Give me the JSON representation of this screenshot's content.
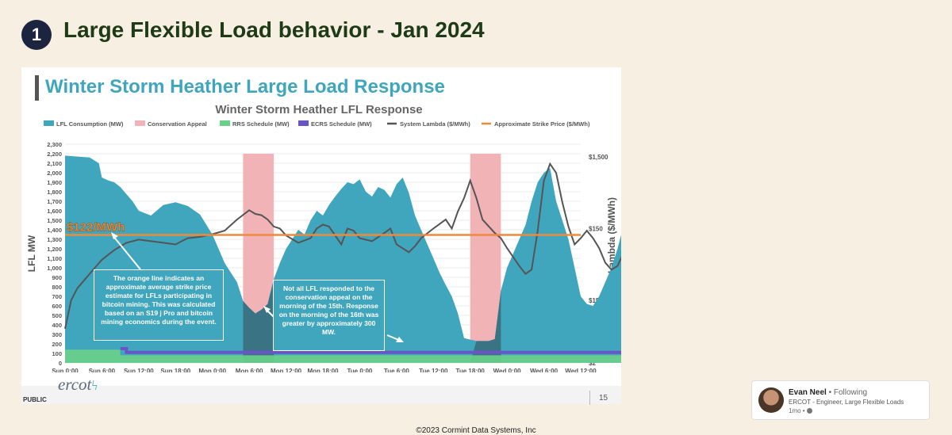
{
  "header": {
    "badge": "1",
    "title": "Large Flexible Load behavior - Jan 2024"
  },
  "slide": {
    "title": "Winter Storm Heather Large Load Response",
    "public_label": "PUBLIC",
    "logo_text": "ercot",
    "page_number": "15"
  },
  "callouts": {
    "left": "The orange line indicates an approximate average strike price estimate for LFLs participating in bitcoin mining. This was calculated based on an S19 j Pro and bitcoin mining economics during the event.",
    "right": "Not all LFL responded to the conservation appeal on the morning of the 15th. Response on the morning of the 16th was greater by approximately 300 MW."
  },
  "profile": {
    "name": "Evan Neel",
    "status": "• Following",
    "role": "ERCOT - Engineer, Large Flexible Loads",
    "time": "1mo •"
  },
  "copyright": "©2023 Cormint Data Systems, Inc",
  "colors": {
    "lfl": "#3fa6bd",
    "conservation": "#f2b3b6",
    "rrs": "#6ad18a",
    "ecrs": "#6a55c8",
    "lambda": "#555555",
    "strike": "#ee8a3c"
  },
  "chart_data": {
    "type": "area",
    "title": "Winter Storm Heather LFL Response",
    "ylabel": "LFL MW",
    "y2label": "System Lambda ($/MWh)",
    "ylim": [
      0,
      2300
    ],
    "yticks": [
      "0",
      "100",
      "200",
      "300",
      "400",
      "500",
      "600",
      "700",
      "800",
      "900",
      "1,000",
      "1,100",
      "1,200",
      "1,300",
      "1,400",
      "1,500",
      "1,600",
      "1,700",
      "1,800",
      "1,900",
      "2,000",
      "2,100",
      "2,200",
      "2,300"
    ],
    "y2_scale": "log",
    "y2_ticks": [
      "$2",
      "$15",
      "$150",
      "$1,500"
    ],
    "y2_tick_values": [
      2,
      15,
      150,
      1500
    ],
    "xticks": [
      "Sun 0:00",
      "Sun 6:00",
      "Sun 12:00",
      "Sun 18:00",
      "Mon 0:00",
      "Mon 6:00",
      "Mon 12:00",
      "Mon 18:00",
      "Tue 0:00",
      "Tue 6:00",
      "Tue 12:00",
      "Tue 18:00",
      "Wed 0:00",
      "Wed 6:00",
      "Wed 12:00"
    ],
    "x_hours_per_tick": 6,
    "strike_price_label": "$122/MWh",
    "strike_price": 122,
    "legend": [
      "LFL Consumption (MW)",
      "Conservation Appeal",
      "RRS Schedule (MW)",
      "ECRS Schedule (MW)",
      "System Lambda ($/MWh)",
      "Approximate Strike Price ($/MWh)"
    ],
    "legend_position": "top",
    "grid": true,
    "conservation_appeals": [
      [
        29,
        34
      ],
      [
        66,
        71
      ]
    ],
    "lfl_mw": [
      [
        0,
        2180
      ],
      [
        2,
        2170
      ],
      [
        4,
        2160
      ],
      [
        5.5,
        2100
      ],
      [
        6,
        1950
      ],
      [
        7,
        1920
      ],
      [
        8,
        1900
      ],
      [
        9,
        1850
      ],
      [
        11,
        1700
      ],
      [
        12,
        1600
      ],
      [
        14,
        1550
      ],
      [
        16,
        1660
      ],
      [
        18,
        1690
      ],
      [
        20,
        1650
      ],
      [
        22,
        1560
      ],
      [
        24,
        1350
      ],
      [
        25,
        1200
      ],
      [
        26,
        1050
      ],
      [
        27,
        950
      ],
      [
        28,
        850
      ],
      [
        29,
        650
      ],
      [
        30,
        580
      ],
      [
        31,
        520
      ],
      [
        32,
        560
      ],
      [
        33,
        620
      ],
      [
        34,
        880
      ],
      [
        35,
        1050
      ],
      [
        36,
        1200
      ],
      [
        37,
        1300
      ],
      [
        38,
        1400
      ],
      [
        39,
        1350
      ],
      [
        40,
        1500
      ],
      [
        41,
        1600
      ],
      [
        42,
        1550
      ],
      [
        43,
        1660
      ],
      [
        44,
        1750
      ],
      [
        45,
        1830
      ],
      [
        46,
        1900
      ],
      [
        47,
        1880
      ],
      [
        48,
        1930
      ],
      [
        49,
        1800
      ],
      [
        50,
        1750
      ],
      [
        51,
        1850
      ],
      [
        52,
        1820
      ],
      [
        53,
        1740
      ],
      [
        54,
        1880
      ],
      [
        55,
        1950
      ],
      [
        56,
        1790
      ],
      [
        57,
        1550
      ],
      [
        58,
        1400
      ],
      [
        59,
        1250
      ],
      [
        60,
        1100
      ],
      [
        61,
        950
      ],
      [
        62,
        820
      ],
      [
        63,
        700
      ],
      [
        64,
        520
      ],
      [
        65,
        260
      ],
      [
        67,
        230
      ],
      [
        68,
        230
      ],
      [
        69,
        230
      ],
      [
        70,
        250
      ],
      [
        71,
        760
      ],
      [
        72,
        1000
      ],
      [
        73,
        1150
      ],
      [
        74,
        1300
      ],
      [
        75,
        1450
      ],
      [
        76,
        1700
      ],
      [
        77,
        1900
      ],
      [
        78,
        2000
      ],
      [
        79,
        2050
      ],
      [
        80,
        1700
      ],
      [
        81,
        1500
      ],
      [
        82,
        1300
      ],
      [
        83,
        1000
      ],
      [
        84,
        700
      ],
      [
        85,
        620
      ],
      [
        86,
        600
      ],
      [
        87,
        700
      ],
      [
        88,
        850
      ],
      [
        89,
        1000
      ],
      [
        90,
        1200
      ],
      [
        91,
        1450
      ],
      [
        92,
        1650
      ],
      [
        93,
        1800
      ],
      [
        94,
        1850
      ],
      [
        95,
        1950
      ],
      [
        96,
        2050
      ],
      [
        97,
        2080
      ],
      [
        98,
        2090
      ],
      [
        99,
        2100
      ],
      [
        100,
        2050
      ],
      [
        101,
        2100
      ],
      [
        102,
        2110
      ],
      [
        103,
        2110
      ],
      [
        104,
        2110
      ]
    ],
    "lfl_shaded_dark_intervals": [
      [
        29,
        34
      ],
      [
        66,
        71
      ]
    ],
    "system_lambda": [
      [
        0,
        6
      ],
      [
        1,
        15
      ],
      [
        2,
        22
      ],
      [
        4,
        35
      ],
      [
        6,
        55
      ],
      [
        8,
        75
      ],
      [
        10,
        95
      ],
      [
        12,
        105
      ],
      [
        14,
        100
      ],
      [
        16,
        95
      ],
      [
        18,
        90
      ],
      [
        19,
        100
      ],
      [
        20,
        110
      ],
      [
        22,
        115
      ],
      [
        24,
        125
      ],
      [
        26,
        140
      ],
      [
        28,
        200
      ],
      [
        30,
        270
      ],
      [
        31,
        240
      ],
      [
        32,
        230
      ],
      [
        33,
        200
      ],
      [
        34,
        160
      ],
      [
        35,
        150
      ],
      [
        36,
        120
      ],
      [
        38,
        95
      ],
      [
        40,
        110
      ],
      [
        41,
        150
      ],
      [
        42,
        170
      ],
      [
        43,
        160
      ],
      [
        44,
        120
      ],
      [
        45,
        90
      ],
      [
        46,
        150
      ],
      [
        47,
        140
      ],
      [
        48,
        110
      ],
      [
        50,
        100
      ],
      [
        52,
        130
      ],
      [
        53,
        150
      ],
      [
        54,
        90
      ],
      [
        56,
        70
      ],
      [
        57,
        85
      ],
      [
        58,
        110
      ],
      [
        60,
        150
      ],
      [
        62,
        200
      ],
      [
        63,
        150
      ],
      [
        64,
        260
      ],
      [
        65,
        400
      ],
      [
        66,
        700
      ],
      [
        67,
        400
      ],
      [
        68,
        200
      ],
      [
        70,
        130
      ],
      [
        71,
        110
      ],
      [
        72,
        80
      ],
      [
        73,
        60
      ],
      [
        74,
        45
      ],
      [
        75,
        35
      ],
      [
        76,
        40
      ],
      [
        77,
        140
      ],
      [
        78,
        700
      ],
      [
        79,
        1200
      ],
      [
        80,
        900
      ],
      [
        81,
        350
      ],
      [
        82,
        160
      ],
      [
        83,
        90
      ],
      [
        84,
        110
      ],
      [
        85,
        140
      ],
      [
        86,
        110
      ],
      [
        87,
        80
      ],
      [
        88,
        50
      ],
      [
        89,
        40
      ],
      [
        90,
        45
      ],
      [
        91,
        70
      ],
      [
        92,
        90
      ],
      [
        93,
        110
      ],
      [
        94,
        100
      ],
      [
        95,
        90
      ],
      [
        96,
        65
      ],
      [
        97,
        50
      ],
      [
        98,
        35
      ],
      [
        99,
        22
      ],
      [
        100,
        20
      ],
      [
        101,
        17
      ],
      [
        102,
        16
      ],
      [
        103,
        16
      ]
    ],
    "rrs_schedule": [
      [
        0,
        140
      ],
      [
        9,
        140
      ],
      [
        9,
        80
      ],
      [
        96,
        80
      ],
      [
        96,
        30
      ],
      [
        100,
        30
      ]
    ],
    "ecrs_schedule": [
      [
        9,
        150
      ],
      [
        10,
        150
      ],
      [
        10,
        110
      ],
      [
        102,
        110
      ],
      [
        102,
        90
      ],
      [
        104,
        90
      ]
    ]
  }
}
